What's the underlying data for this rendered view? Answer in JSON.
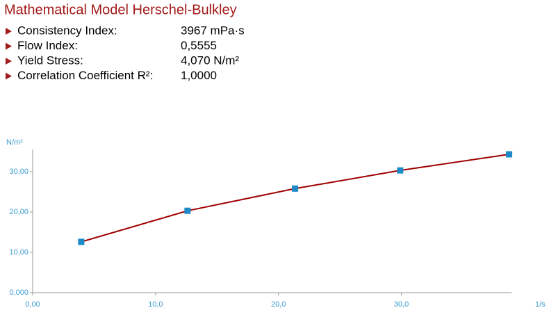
{
  "model": {
    "title": "Mathematical Model Herschel-Bulkley",
    "params": [
      {
        "label": "Consistency Index:",
        "value": "3967 mPa·s"
      },
      {
        "label": "Flow Index:",
        "value": "0,5555"
      },
      {
        "label": "Yield Stress:",
        "value": "4,070 N/m²"
      },
      {
        "label": "Correlation Coefficient R²:",
        "value": "1,0000"
      }
    ]
  },
  "chart_data": {
    "type": "line",
    "y_label": "N/m²",
    "x_label": "1/s",
    "x": [
      3.95,
      12.6,
      21.35,
      29.9,
      38.76
    ],
    "series": [
      {
        "name": "Herschel-Bulkley",
        "color": "#a00000",
        "marker_color": "#1b8ac6",
        "values": [
          12.6,
          20.3,
          25.8,
          30.3,
          34.3
        ]
      }
    ],
    "xlim": [
      0,
      38.9
    ],
    "ylim": [
      0,
      35.5
    ],
    "xticks": [
      {
        "value": 0,
        "label": "0,00"
      },
      {
        "value": 10,
        "label": "10,0"
      },
      {
        "value": 20,
        "label": "20,0"
      },
      {
        "value": 30,
        "label": "30,0"
      }
    ],
    "yticks": [
      {
        "value": 0,
        "label": "0,000"
      },
      {
        "value": 10,
        "label": "10,00"
      },
      {
        "value": 20,
        "label": "20,00"
      },
      {
        "value": 30,
        "label": "30,00"
      }
    ],
    "grid": false
  }
}
